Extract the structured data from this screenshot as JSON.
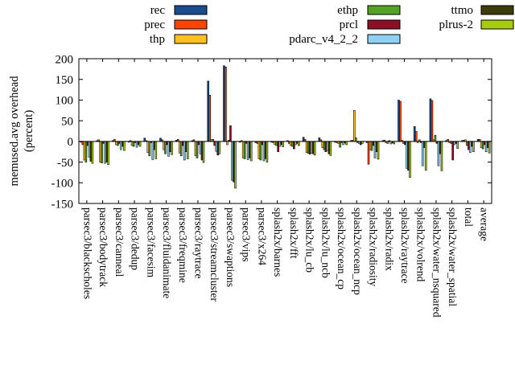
{
  "chart_data": {
    "type": "bar",
    "title": "",
    "ylabel_line1": "memused.avg overhead",
    "ylabel_line2": "(percent)",
    "ylim": [
      -150,
      200
    ],
    "yticks": [
      200,
      150,
      100,
      50,
      0,
      -50,
      -100,
      -150
    ],
    "grid": false,
    "legend_position": "top",
    "categories": [
      "parsec3/blackscholes",
      "parsec3/bodytrack",
      "parsec3/canneal",
      "parsec3/dedup",
      "parsec3/facesim",
      "parsec3/fluidanimate",
      "parsec3/freqmine",
      "parsec3/raytrace",
      "parsec3/streamcluster",
      "parsec3/swaptions",
      "parsec3/vips",
      "parsec3/x264",
      "splash2x/barnes",
      "splash2x/fft",
      "splash2x/lu_cb",
      "splash2x/lu_ncb",
      "splash2x/ocean_cp",
      "splash2x/ocean_ncp",
      "splash2x/radiosity",
      "splash2x/radix",
      "splash2x/raytrace",
      "splash2x/volrend",
      "splash2x/water_nsquared",
      "splash2x/water_spatial",
      "total",
      "average"
    ],
    "series": [
      {
        "name": "rec",
        "color": "#1a4c8f",
        "legend_col": 0,
        "legend_row": 0,
        "values": [
          -2,
          2,
          2,
          -2,
          8,
          8,
          3,
          2,
          146,
          183,
          -2,
          -3,
          -2,
          2,
          10,
          9,
          -2,
          2,
          -3,
          2,
          100,
          36,
          103,
          2,
          2,
          5
        ]
      },
      {
        "name": "prec",
        "color": "#ff4400",
        "legend_col": 0,
        "legend_row": 1,
        "values": [
          -8,
          4,
          5,
          2,
          2,
          4,
          5,
          4,
          112,
          180,
          2,
          -5,
          -3,
          -5,
          5,
          4,
          -3,
          3,
          -55,
          3,
          97,
          24,
          99,
          5,
          3,
          5
        ]
      },
      {
        "name": "thp",
        "color": "#ffc020",
        "legend_col": 0,
        "legend_row": 2,
        "values": [
          -45,
          -50,
          -8,
          -10,
          -27,
          -20,
          -28,
          -35,
          5,
          -8,
          -40,
          -42,
          -8,
          -10,
          -27,
          -15,
          -5,
          75,
          -20,
          -3,
          3,
          -3,
          4,
          -3,
          4,
          -15
        ]
      },
      {
        "name": "ethp",
        "color": "#55a325",
        "legend_col": 1,
        "legend_row": 0,
        "values": [
          -50,
          -52,
          -10,
          -12,
          -35,
          -30,
          -35,
          -40,
          5,
          3,
          -42,
          -45,
          -10,
          -12,
          -29,
          -20,
          -14,
          9,
          -22,
          -5,
          -5,
          4,
          15,
          -5,
          -10,
          -18
        ]
      },
      {
        "name": "prcl",
        "color": "#8b1026",
        "legend_col": 1,
        "legend_row": 1,
        "values": [
          -10,
          -5,
          -5,
          -3,
          -3,
          -8,
          -10,
          -8,
          -10,
          38,
          -5,
          -8,
          -25,
          -18,
          -31,
          -25,
          -3,
          -3,
          -10,
          2,
          -8,
          -3,
          -5,
          -45,
          -20,
          -8
        ]
      },
      {
        "name": "pdarc_v4_2_2",
        "color": "#8fd0f5",
        "legend_col": 1,
        "legend_row": 2,
        "values": [
          -38,
          -53,
          -20,
          -14,
          -44,
          -36,
          -45,
          -30,
          -24,
          -94,
          -44,
          -47,
          -12,
          -8,
          -28,
          -22,
          -8,
          -5,
          -40,
          -6,
          -65,
          -59,
          -59,
          -8,
          -27,
          -25
        ]
      },
      {
        "name": "ttmo",
        "color": "#3d3d0c",
        "legend_col": 2,
        "legend_row": 0,
        "values": [
          -48,
          -50,
          -12,
          -8,
          -20,
          -25,
          -25,
          -45,
          -33,
          -98,
          -40,
          -42,
          -8,
          -5,
          -30,
          -30,
          -4,
          -8,
          -25,
          -4,
          -70,
          -15,
          -30,
          -5,
          -12,
          -15
        ]
      },
      {
        "name": "plrus-2",
        "color": "#a6cc0f",
        "legend_col": 2,
        "legend_row": 1,
        "values": [
          -53,
          -56,
          -22,
          -12,
          -42,
          -32,
          -42,
          -51,
          -30,
          -113,
          -47,
          -50,
          -13,
          -10,
          -33,
          -34,
          -8,
          -5,
          -43,
          -6,
          -87,
          -70,
          -71,
          -17,
          -25,
          -28
        ]
      }
    ]
  },
  "colors": {
    "axis": "#000000",
    "background": "#ffffff"
  }
}
